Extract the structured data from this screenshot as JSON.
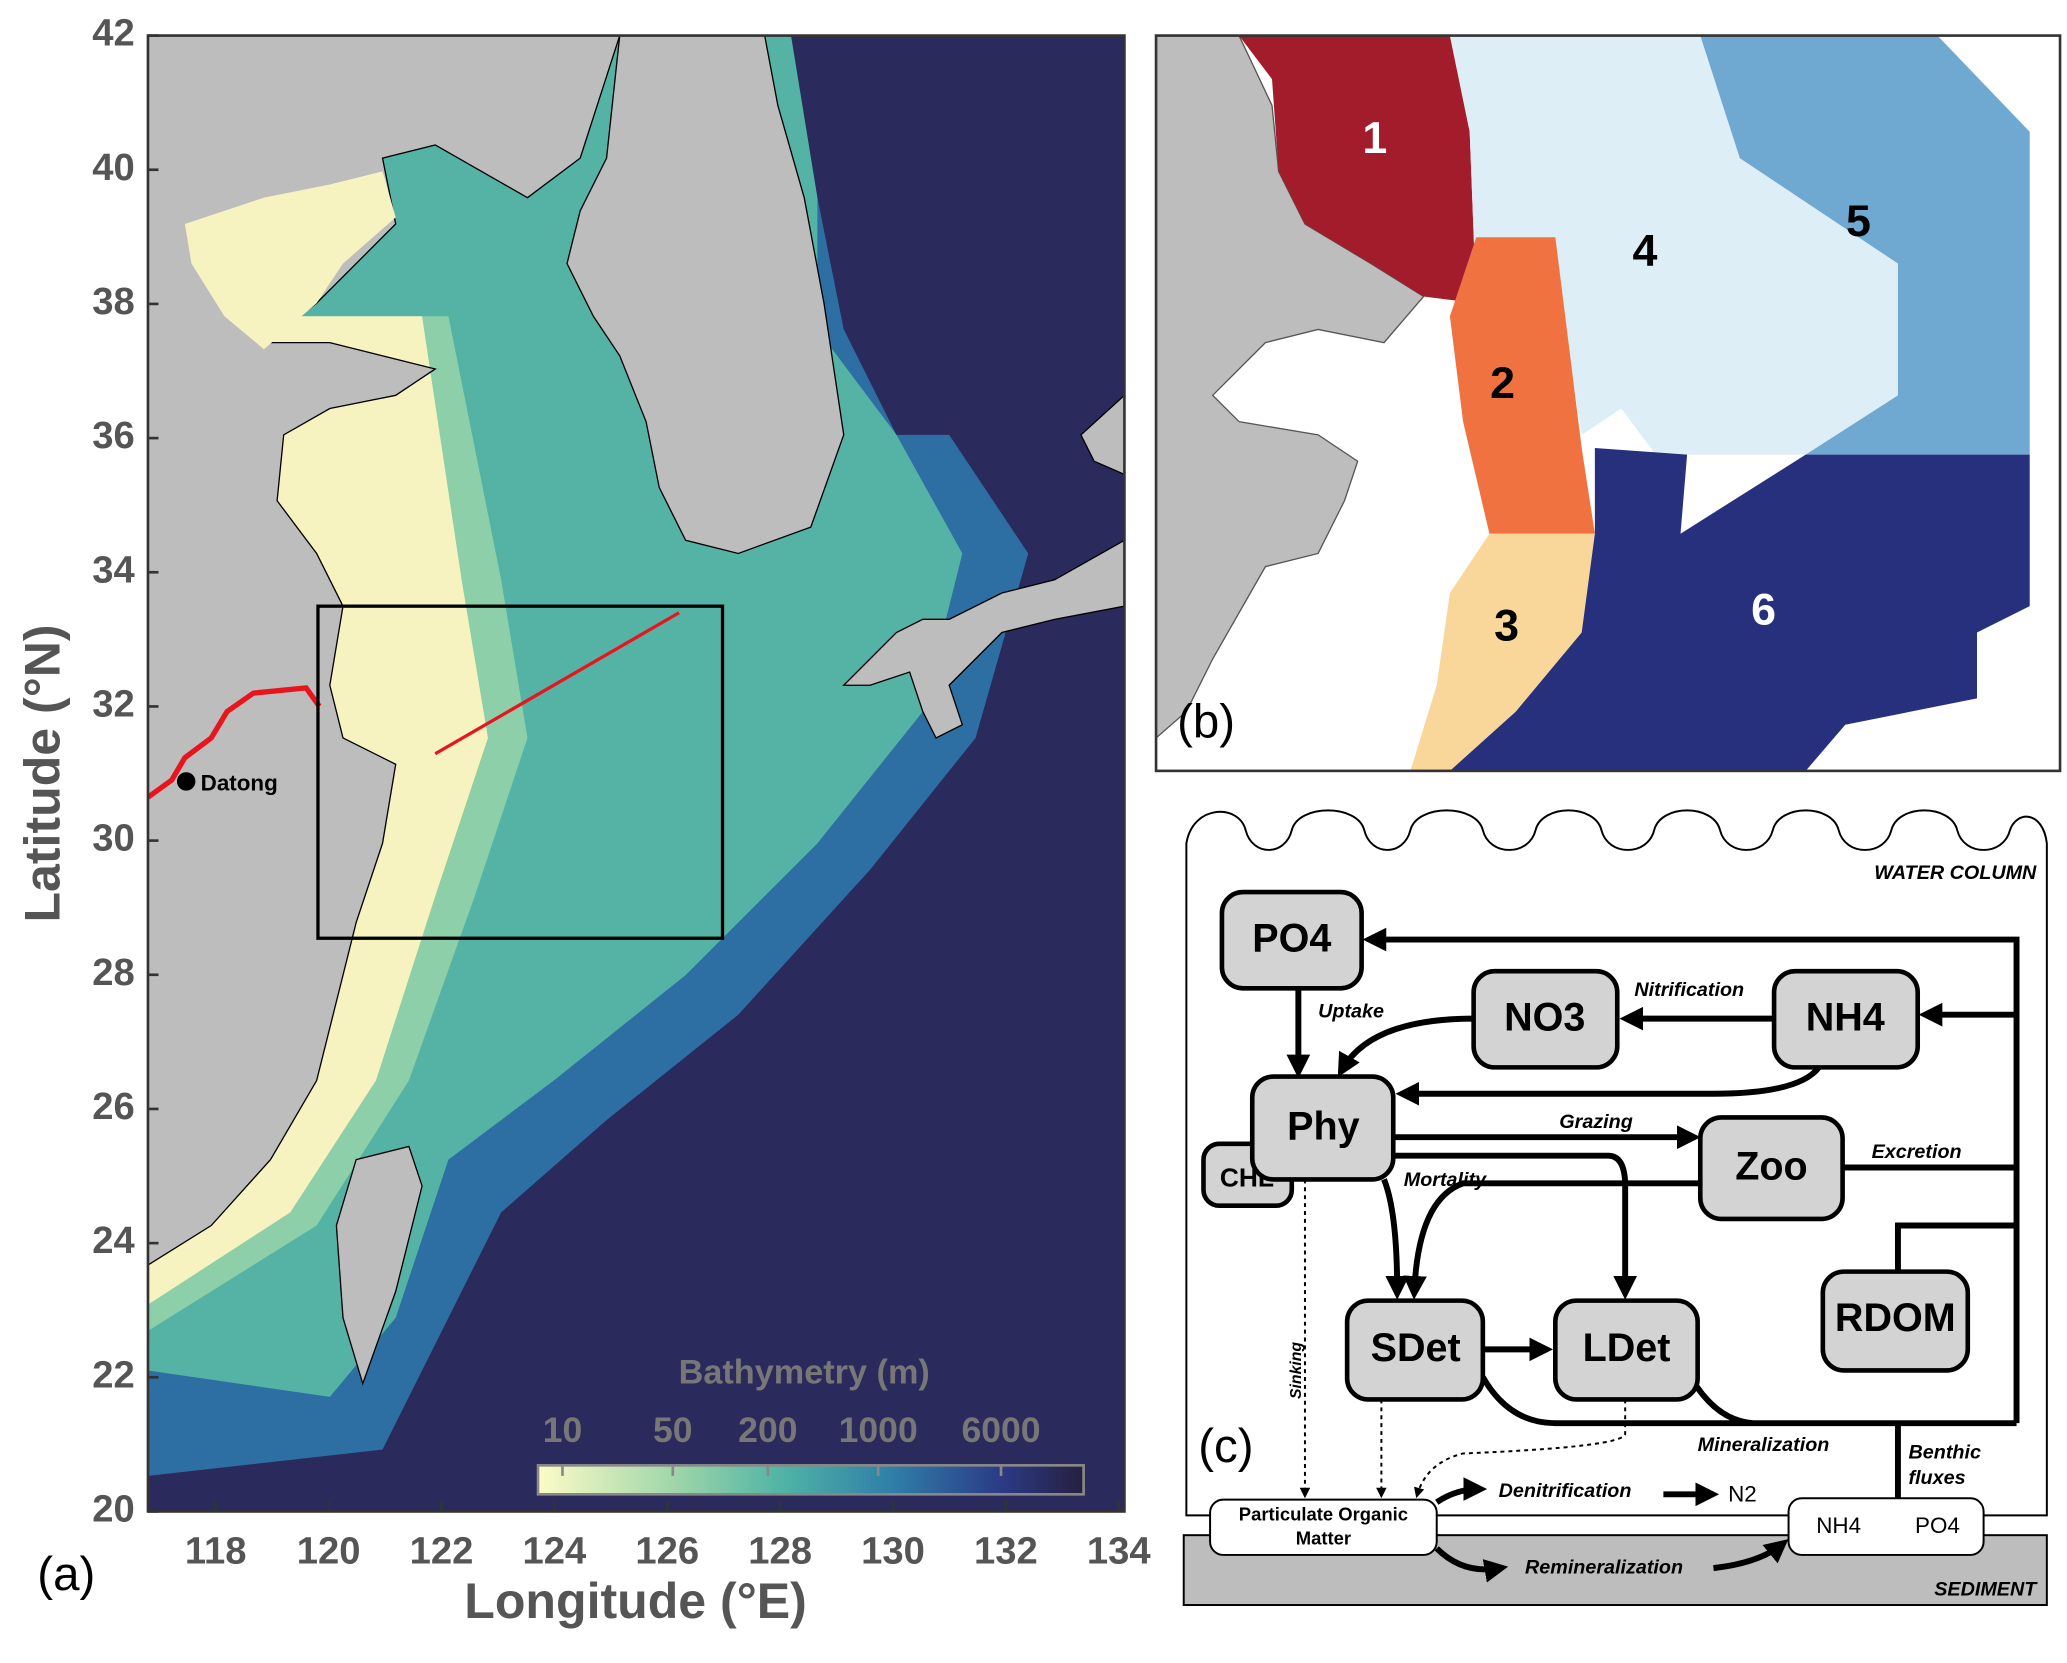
{
  "panel_a": {
    "label": "(a)",
    "xlabel": "Longitude (°E)",
    "ylabel": "Latitude (°N)",
    "xlim": [
      116.8,
      134.1
    ],
    "ylim": [
      20,
      42
    ],
    "xticks": [
      118,
      120,
      122,
      124,
      126,
      128,
      130,
      132,
      134
    ],
    "yticks": [
      20,
      22,
      24,
      26,
      28,
      30,
      32,
      34,
      36,
      38,
      40,
      42
    ],
    "place": "Datong",
    "colorbar": {
      "title": "Bathymetry (m)",
      "lim": [
        7,
        20000
      ],
      "ticks": [
        10,
        50,
        200,
        1000,
        6000
      ],
      "log": true
    }
  },
  "panel_b": {
    "label": "(b)",
    "regions": [
      {
        "name": "1",
        "color": "#a31c2b"
      },
      {
        "name": "2",
        "color": "#f07241"
      },
      {
        "name": "3",
        "color": "#f9d79a"
      },
      {
        "name": "4",
        "color": "#ddeef7"
      },
      {
        "name": "5",
        "color": "#6fa8d0"
      },
      {
        "name": "6",
        "color": "#27307d"
      }
    ]
  },
  "panel_c": {
    "label": "(c)",
    "water_column": "WATER COLUMN",
    "sediment": "SEDIMENT",
    "nodes": {
      "po4": "PO4",
      "no3": "NO3",
      "nh4": "NH4",
      "phy": "Phy",
      "chl": "CHL",
      "zoo": "Zoo",
      "sdet": "SDet",
      "ldet": "LDet",
      "rdom": "RDOM",
      "pom": "Particulate Organic Matter",
      "sed_nh4": "NH4",
      "sed_po4": "PO4",
      "n2": "N2"
    },
    "processes": {
      "uptake": "Uptake",
      "nitrification": "Nitrification",
      "grazing": "Grazing",
      "excretion": "Excretion",
      "mortality": "Mortality",
      "sinking": "Sinking",
      "mineralization": "Mineralization",
      "denitrification": "Denitrification",
      "remineralization": "Remineralization",
      "benthic": "Benthic fluxes"
    }
  }
}
